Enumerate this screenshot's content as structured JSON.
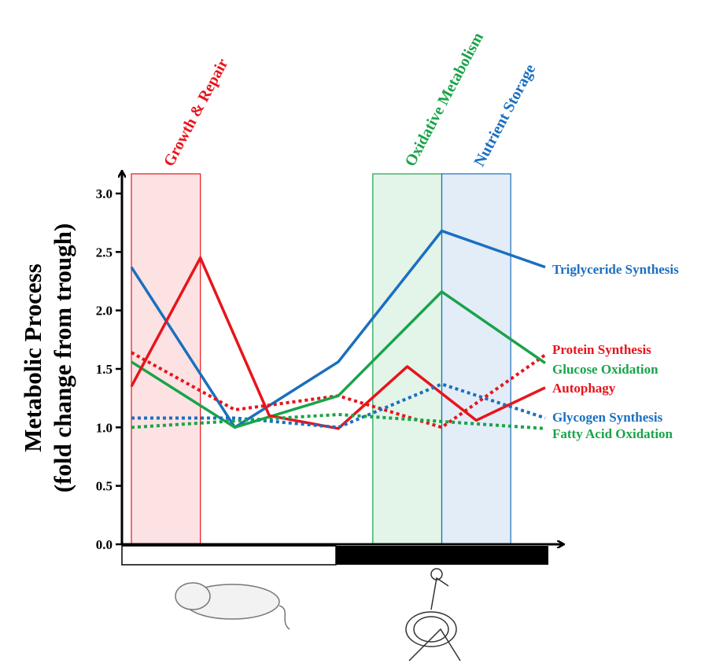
{
  "chart_data": {
    "type": "line",
    "y_label": [
      "Metabolic Process",
      "(fold change from trough)"
    ],
    "xlim": [
      0,
      12
    ],
    "ylim": [
      0,
      3
    ],
    "yticks": [
      {
        "value": 0,
        "label": "0.0"
      },
      {
        "value": 0.5,
        "label": "0.5"
      },
      {
        "value": 1,
        "label": "1.0"
      },
      {
        "value": 1.5,
        "label": "1.5"
      },
      {
        "value": 2,
        "label": "2.0"
      },
      {
        "value": 2.5,
        "label": "2.5"
      },
      {
        "value": 3,
        "label": "3.0"
      }
    ],
    "bands": [
      {
        "label": "Growth & Repair",
        "x": [
          0,
          2
        ],
        "color": "#e8141b"
      },
      {
        "label": "Oxidative Metabolism",
        "x": [
          7,
          9
        ],
        "color": "#1aa34a"
      },
      {
        "label": "Nutrient Storage",
        "x": [
          9,
          11
        ],
        "color": "#1a6fc0"
      }
    ],
    "series": [
      {
        "name": "Triglyceride Synthesis",
        "color": "#1a6fc0",
        "dashed": false,
        "x": [
          0,
          3,
          6,
          9,
          12
        ],
        "values": [
          2.37,
          1.0,
          1.56,
          2.68,
          2.37
        ]
      },
      {
        "name": "Protein Synthesis",
        "color": "#e8141b",
        "dashed": true,
        "x": [
          0,
          3,
          6,
          9,
          12
        ],
        "values": [
          1.64,
          1.15,
          1.27,
          1.0,
          1.62
        ]
      },
      {
        "name": "Glucose Oxidation",
        "color": "#1aa34a",
        "dashed": false,
        "x": [
          0,
          3,
          6,
          9,
          12
        ],
        "values": [
          1.56,
          1.0,
          1.27,
          2.16,
          1.55
        ]
      },
      {
        "name": "Autophagy",
        "color": "#e8141b",
        "dashed": false,
        "x": [
          0,
          2,
          4,
          6,
          8,
          10,
          12
        ],
        "values": [
          1.35,
          2.45,
          1.1,
          0.99,
          1.52,
          1.06,
          1.34
        ]
      },
      {
        "name": "Glycogen Synthesis",
        "color": "#1a6fc0",
        "dashed": true,
        "x": [
          0,
          3,
          6,
          9,
          12
        ],
        "values": [
          1.08,
          1.08,
          1.0,
          1.37,
          1.08
        ]
      },
      {
        "name": "Fatty Acid Oxidation",
        "color": "#1aa34a",
        "dashed": true,
        "x": [
          0,
          6,
          12
        ],
        "values": [
          1.0,
          1.11,
          0.99
        ]
      }
    ]
  }
}
